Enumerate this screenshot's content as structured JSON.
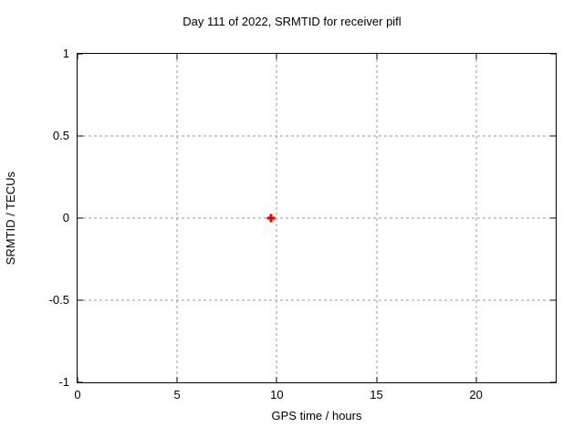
{
  "chart_data": {
    "type": "scatter",
    "title": "Day 111 of 2022, SRMTID for receiver pifl",
    "xlabel": "GPS time / hours",
    "ylabel": "SRMTID / TECUs",
    "xlim": [
      0,
      24
    ],
    "ylim": [
      -1,
      1
    ],
    "grid": true,
    "legend": "none",
    "xticks": [
      {
        "value": 0,
        "label": "0"
      },
      {
        "value": 5,
        "label": "5"
      },
      {
        "value": 10,
        "label": "10"
      },
      {
        "value": 15,
        "label": "15"
      },
      {
        "value": 20,
        "label": "20"
      }
    ],
    "yticks": [
      {
        "value": 1,
        "label": "1"
      },
      {
        "value": 0.5,
        "label": "0.5"
      },
      {
        "value": 0,
        "label": "0"
      },
      {
        "value": -0.5,
        "label": "-0.5"
      },
      {
        "value": -1,
        "label": "-1"
      }
    ],
    "series": [
      {
        "name": "SRMTID",
        "marker": "plus",
        "color": "#ee0000",
        "points": [
          {
            "x": 9.72,
            "y": 0
          }
        ]
      }
    ],
    "colors": {
      "grid": "#999999",
      "axis": "#000000",
      "background": "#ffffff",
      "marker": "#ee0000"
    }
  }
}
